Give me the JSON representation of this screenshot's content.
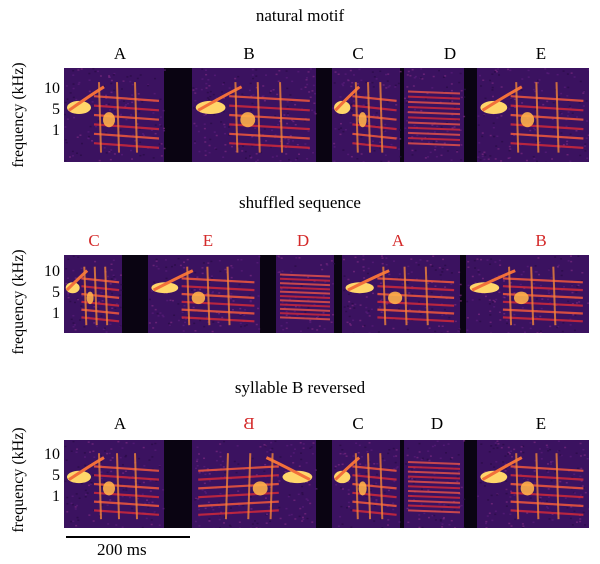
{
  "ylabel": "frequency (kHz)",
  "yticks": [
    "10",
    "5",
    "1"
  ],
  "panels": [
    {
      "title": "natural motif",
      "syllables": [
        {
          "label": "A",
          "color": "#000000"
        },
        {
          "label": "B",
          "color": "#000000"
        },
        {
          "label": "C",
          "color": "#000000"
        },
        {
          "label": "D",
          "color": "#000000"
        },
        {
          "label": "E",
          "color": "#000000"
        }
      ]
    },
    {
      "title": "shuffled sequence",
      "syllables": [
        {
          "label": "C",
          "color": "#d42a2a"
        },
        {
          "label": "E",
          "color": "#d42a2a"
        },
        {
          "label": "D",
          "color": "#d42a2a"
        },
        {
          "label": "A",
          "color": "#d42a2a"
        },
        {
          "label": "B",
          "color": "#d42a2a"
        }
      ]
    },
    {
      "title": "syllable B reversed",
      "syllables": [
        {
          "label": "A",
          "color": "#000000"
        },
        {
          "label": "B",
          "color": "#d42a2a",
          "mirrored": true
        },
        {
          "label": "C",
          "color": "#000000"
        },
        {
          "label": "D",
          "color": "#000000"
        },
        {
          "label": "E",
          "color": "#000000"
        }
      ]
    }
  ],
  "scale_bar": "200 ms",
  "colors": {
    "background": "#0a0412",
    "energy_low": "#4a1a6e",
    "energy_mid": "#c8283c",
    "energy_high": "#ffd66a"
  }
}
